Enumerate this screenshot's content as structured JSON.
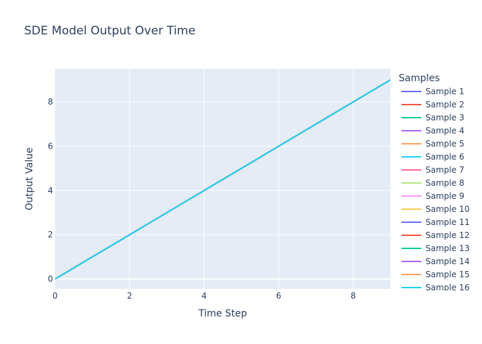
{
  "chart_data": {
    "type": "line",
    "title": "SDE Model Output Over Time",
    "xlabel": "Time Step",
    "ylabel": "Output Value",
    "xlim": [
      0,
      9
    ],
    "ylim": [
      -0.45,
      9.5
    ],
    "x_ticks": [
      0,
      2,
      4,
      6,
      8
    ],
    "y_ticks": [
      0,
      2,
      4,
      6,
      8
    ],
    "grid": true,
    "legend_title": "Samples",
    "legend_position": "right",
    "x": [
      0,
      1,
      2,
      3,
      4,
      5,
      6,
      7,
      8,
      9
    ],
    "series": [
      {
        "name": "Sample 1",
        "color": "#636efa",
        "values": [
          0,
          1,
          2,
          3,
          4,
          5,
          6,
          7,
          8,
          9
        ]
      },
      {
        "name": "Sample 2",
        "color": "#ef553b",
        "values": [
          0,
          1,
          2,
          3,
          4,
          5,
          6,
          7,
          8,
          9
        ]
      },
      {
        "name": "Sample 3",
        "color": "#00cc96",
        "values": [
          0,
          1,
          2,
          3,
          4,
          5,
          6,
          7,
          8,
          9
        ]
      },
      {
        "name": "Sample 4",
        "color": "#ab63fa",
        "values": [
          0,
          1,
          2,
          3,
          4,
          5,
          6,
          7,
          8,
          9
        ]
      },
      {
        "name": "Sample 5",
        "color": "#ffa15a",
        "values": [
          0,
          1,
          2,
          3,
          4,
          5,
          6,
          7,
          8,
          9
        ]
      },
      {
        "name": "Sample 6",
        "color": "#19d3f3",
        "values": [
          0,
          1,
          2,
          3,
          4,
          5,
          6,
          7,
          8,
          9
        ]
      },
      {
        "name": "Sample 7",
        "color": "#ff6692",
        "values": [
          0,
          1,
          2,
          3,
          4,
          5,
          6,
          7,
          8,
          9
        ]
      },
      {
        "name": "Sample 8",
        "color": "#b6e880",
        "values": [
          0,
          1,
          2,
          3,
          4,
          5,
          6,
          7,
          8,
          9
        ]
      },
      {
        "name": "Sample 9",
        "color": "#ff97ff",
        "values": [
          0,
          1,
          2,
          3,
          4,
          5,
          6,
          7,
          8,
          9
        ]
      },
      {
        "name": "Sample 10",
        "color": "#fecb52",
        "values": [
          0,
          1,
          2,
          3,
          4,
          5,
          6,
          7,
          8,
          9
        ]
      },
      {
        "name": "Sample 11",
        "color": "#636efa",
        "values": [
          0,
          1,
          2,
          3,
          4,
          5,
          6,
          7,
          8,
          9
        ]
      },
      {
        "name": "Sample 12",
        "color": "#ef553b",
        "values": [
          0,
          1,
          2,
          3,
          4,
          5,
          6,
          7,
          8,
          9
        ]
      },
      {
        "name": "Sample 13",
        "color": "#00cc96",
        "values": [
          0,
          1,
          2,
          3,
          4,
          5,
          6,
          7,
          8,
          9
        ]
      },
      {
        "name": "Sample 14",
        "color": "#ab63fa",
        "values": [
          0,
          1,
          2,
          3,
          4,
          5,
          6,
          7,
          8,
          9
        ]
      },
      {
        "name": "Sample 15",
        "color": "#ffa15a",
        "values": [
          0,
          1,
          2,
          3,
          4,
          5,
          6,
          7,
          8,
          9
        ]
      },
      {
        "name": "Sample 16",
        "color": "#19d3f3",
        "values": [
          0,
          1,
          2,
          3,
          4,
          5,
          6,
          7,
          8,
          9
        ]
      }
    ]
  }
}
